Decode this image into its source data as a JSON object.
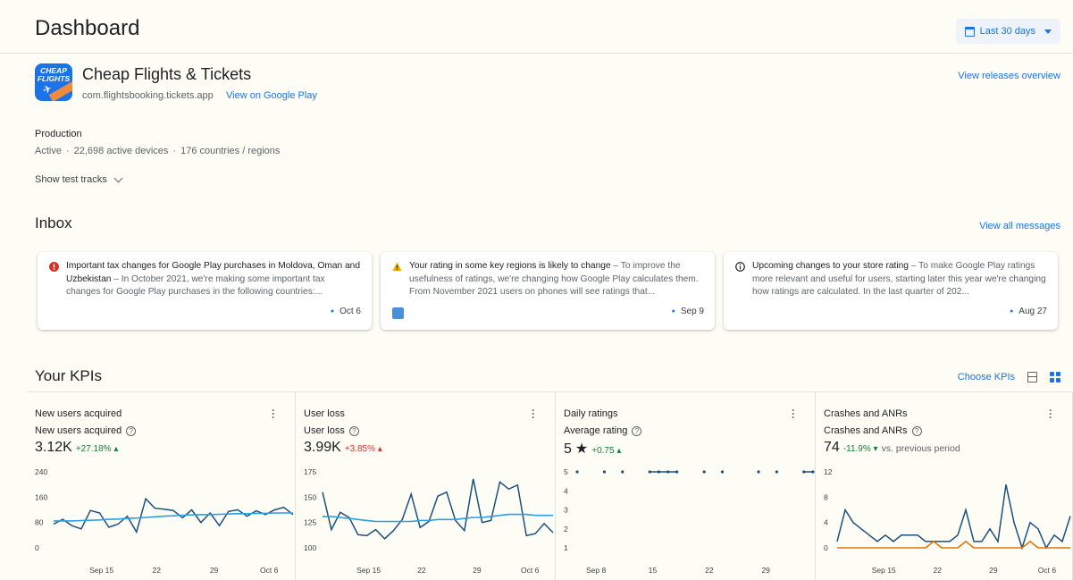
{
  "header": {
    "title": "Dashboard",
    "date_range": "Last 30 days"
  },
  "app": {
    "name": "Cheap Flights & Tickets",
    "package": "com.flightsbooking.tickets.app",
    "play_link": "View on Google Play",
    "releases_link": "View releases overview",
    "icon_text": "CHEAP FLIGHTS"
  },
  "production": {
    "title": "Production",
    "status": "Active",
    "devices": "22,698 active devices",
    "countries": "176 countries / regions",
    "test_tracks": "Show test tracks"
  },
  "inbox": {
    "title": "Inbox",
    "view_all": "View all messages",
    "messages": [
      {
        "title": "Important tax changes for Google Play purchases in Moldova, Oman and Uzbekistan",
        "body": " – In October 2021, we're making some important tax changes for Google Play purchases in the following countries:...",
        "date": "Oct 6",
        "icon": "error-icon"
      },
      {
        "title": "Your rating in some key regions is likely to change",
        "body": " – To improve the usefulness of ratings, we're changing how Google Play calculates them. From November 2021 users on phones will see ratings that...",
        "date": "Sep 9",
        "icon": "warning-icon"
      },
      {
        "title": "Upcoming changes to your store rating",
        "body": " – To make Google Play ratings more relevant and useful for users, starting later this year we're changing how ratings are calculated. In the last quarter of 202...",
        "date": "Aug 27",
        "icon": "info-icon"
      }
    ]
  },
  "kpis": {
    "title": "Your KPIs",
    "choose": "Choose KPIs",
    "cards": [
      {
        "title": "New users acquired",
        "subtitle": "New users acquired",
        "value": "3.12K",
        "change": "+27.18%",
        "change_dir": "up",
        "prev": ""
      },
      {
        "title": "User loss",
        "subtitle": "User loss",
        "value": "3.99K",
        "change": "+3.85%",
        "change_dir": "up",
        "prev": ""
      },
      {
        "title": "Daily ratings",
        "subtitle": "Average rating",
        "value": "5",
        "change": "+0.75",
        "change_dir": "up",
        "prev": ""
      },
      {
        "title": "Crashes and ANRs",
        "subtitle": "Crashes and ANRs",
        "value": "74",
        "change": "-11.9%",
        "change_dir": "down",
        "prev": "vs. previous period"
      }
    ]
  },
  "colors": {
    "accent": "#1a73e8",
    "series_dark": "#1d4f7c",
    "series_light": "#2a9fe4",
    "series_orange": "#e37400",
    "positive": "#188038",
    "negative": "#d93025"
  },
  "chart_data": [
    {
      "type": "line",
      "title": "New users acquired",
      "x_ticks": [
        "Sep 15",
        "22",
        "29",
        "Oct 6"
      ],
      "y_ticks": [
        0,
        80,
        160,
        240
      ],
      "ylim": [
        0,
        240
      ],
      "series": [
        {
          "values": [
            75,
            90,
            70,
            60,
            118,
            110,
            65,
            75,
            100,
            50,
            155,
            125,
            122,
            118,
            95,
            120,
            80,
            110,
            70,
            115,
            120,
            100,
            117,
            105,
            120,
            128,
            105
          ]
        },
        {
          "values": [
            85,
            85,
            85,
            86,
            87,
            88,
            90,
            91,
            93,
            94,
            96,
            98,
            100,
            101,
            103,
            104,
            105,
            105,
            106,
            107,
            108,
            108,
            109,
            109,
            110,
            110,
            110
          ]
        }
      ]
    },
    {
      "type": "line",
      "title": "User loss",
      "x_ticks": [
        "Sep 15",
        "22",
        "29",
        "Oct 6"
      ],
      "y_ticks": [
        100,
        125,
        150,
        175
      ],
      "ylim": [
        100,
        175
      ],
      "series": [
        {
          "values": [
            155,
            118,
            135,
            130,
            113,
            112,
            118,
            109,
            117,
            128,
            153,
            120,
            126,
            151,
            155,
            127,
            117,
            168,
            125,
            127,
            165,
            158,
            162,
            112,
            114,
            124,
            115
          ]
        },
        {
          "values": [
            131,
            131,
            130,
            129,
            128,
            127,
            126,
            126,
            126,
            126,
            126,
            127,
            127,
            128,
            128,
            128,
            129,
            130,
            130,
            131,
            132,
            133,
            133,
            133,
            132,
            132,
            132
          ]
        }
      ]
    },
    {
      "type": "scatter",
      "title": "Daily ratings",
      "x_ticks": [
        "Sep 8",
        "15",
        "22",
        "29"
      ],
      "y_ticks": [
        1,
        2,
        3,
        4,
        5
      ],
      "ylim": [
        1,
        5
      ],
      "series": [
        {
          "values": [
            5,
            null,
            null,
            5,
            null,
            5,
            null,
            null,
            5,
            5,
            5,
            5,
            null,
            null,
            5,
            null,
            5,
            null,
            null,
            null,
            5,
            null,
            5,
            null,
            null,
            5,
            5
          ]
        }
      ]
    },
    {
      "type": "line",
      "title": "Crashes and ANRs",
      "x_ticks": [
        "Sep 15",
        "22",
        "29",
        "Oct 6"
      ],
      "y_ticks": [
        0,
        4,
        8,
        12
      ],
      "ylim": [
        0,
        12
      ],
      "series": [
        {
          "values": [
            1,
            6,
            4,
            3,
            2,
            1,
            2,
            1,
            2,
            2,
            2,
            1,
            1,
            1,
            1,
            2,
            6,
            1,
            1,
            3,
            1,
            10,
            4,
            0,
            4,
            3,
            0,
            2,
            1,
            5
          ]
        },
        {
          "values": [
            0,
            0,
            0,
            0,
            0,
            0,
            0,
            0,
            0,
            0,
            0,
            0,
            1,
            0,
            0,
            0,
            1,
            0,
            0,
            0,
            0,
            0,
            0,
            0,
            1,
            0,
            0,
            0,
            0,
            0
          ]
        }
      ]
    }
  ]
}
